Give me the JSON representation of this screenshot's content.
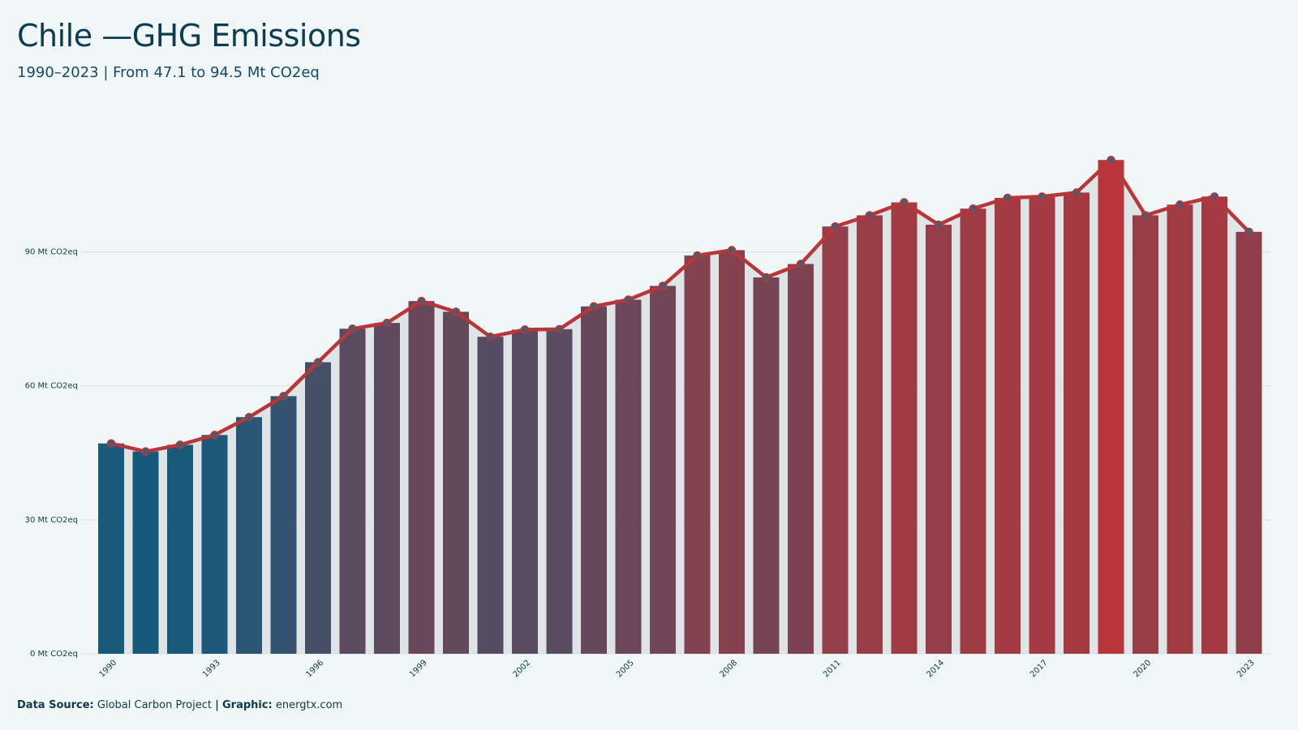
{
  "header": {
    "title": "Chile —GHG Emissions",
    "subtitle": "1990–2023 | From 47.1 to 94.5 Mt CO2eq"
  },
  "footer": {
    "source_label": "Data Source:",
    "source_value": "Global Carbon Project",
    "separator": "|",
    "graphic_label": "Graphic:",
    "graphic_value": "energtx.com"
  },
  "colors": {
    "low": "#155a7c",
    "high": "#b8363a",
    "line": "#b8363a",
    "marker": "#4e5a6e",
    "area": "#dde3e6",
    "grid": "#d7e0e2",
    "background": "#f1f6f6"
  },
  "chart_data": {
    "type": "bar",
    "title": "Chile —GHG Emissions",
    "subtitle": "1990–2023 | From 47.1 to 94.5 Mt CO2eq",
    "xlabel": "",
    "ylabel": "",
    "unit": "Mt CO2eq",
    "ylim": [
      0,
      115
    ],
    "y_ticks": [
      0,
      30,
      60,
      90
    ],
    "y_tick_labels": [
      "0 Mt CO2eq",
      "30 Mt CO2eq",
      "60 Mt CO2eq",
      "90 Mt CO2eq"
    ],
    "x_tick_labels": [
      "1990",
      "1993",
      "1996",
      "1999",
      "2002",
      "2005",
      "2008",
      "2011",
      "2014",
      "2017",
      "2020",
      "2023"
    ],
    "grid": true,
    "legend": "none",
    "overlay_line": true,
    "categories": [
      1990,
      1991,
      1992,
      1993,
      1994,
      1995,
      1996,
      1997,
      1998,
      1999,
      2000,
      2001,
      2002,
      2003,
      2004,
      2005,
      2006,
      2007,
      2008,
      2009,
      2010,
      2011,
      2012,
      2013,
      2014,
      2015,
      2016,
      2017,
      2018,
      2019,
      2020,
      2021,
      2022,
      2023
    ],
    "values": [
      47.1,
      45.3,
      46.8,
      49.0,
      53.0,
      57.7,
      65.3,
      72.8,
      74.1,
      79.0,
      76.6,
      71.0,
      72.6,
      72.7,
      77.8,
      79.3,
      82.4,
      89.2,
      90.4,
      84.3,
      87.3,
      95.7,
      98.2,
      101.1,
      96.1,
      99.7,
      102.1,
      102.4,
      103.3,
      110.6,
      98.2,
      100.6,
      102.4,
      94.5
    ]
  }
}
